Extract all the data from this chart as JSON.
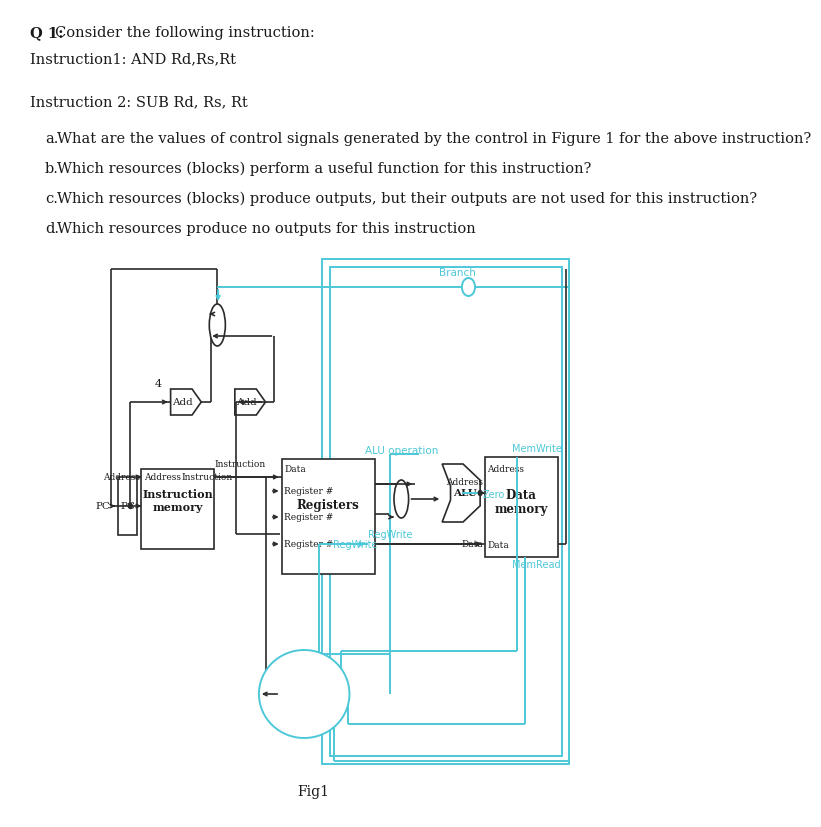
{
  "title_q": "Q 1:",
  "title_text": "  Consider the following instruction:",
  "instr1": "Instruction1: AND Rd,Rs,Rt",
  "instr2": "Instruction 2: SUB Rd, Rs, Rt",
  "qa": "a.   What are the values of control signals generated by the control in Figure 1 for the above instruction?",
  "qb": "b.   Which resources (blocks) perform a useful function for this instruction?",
  "qc": "c.   Which resources (blocks) produce outputs, but their outputs are not used for this instruction?",
  "qd": "d.   Which resources produce no outputs for this instruction",
  "fig_label": "Fig1",
  "bg_color": "#ffffff",
  "text_color": "#1a1a1a",
  "cyan_color": "#4dc8d8",
  "dark": "#2a2a2a"
}
